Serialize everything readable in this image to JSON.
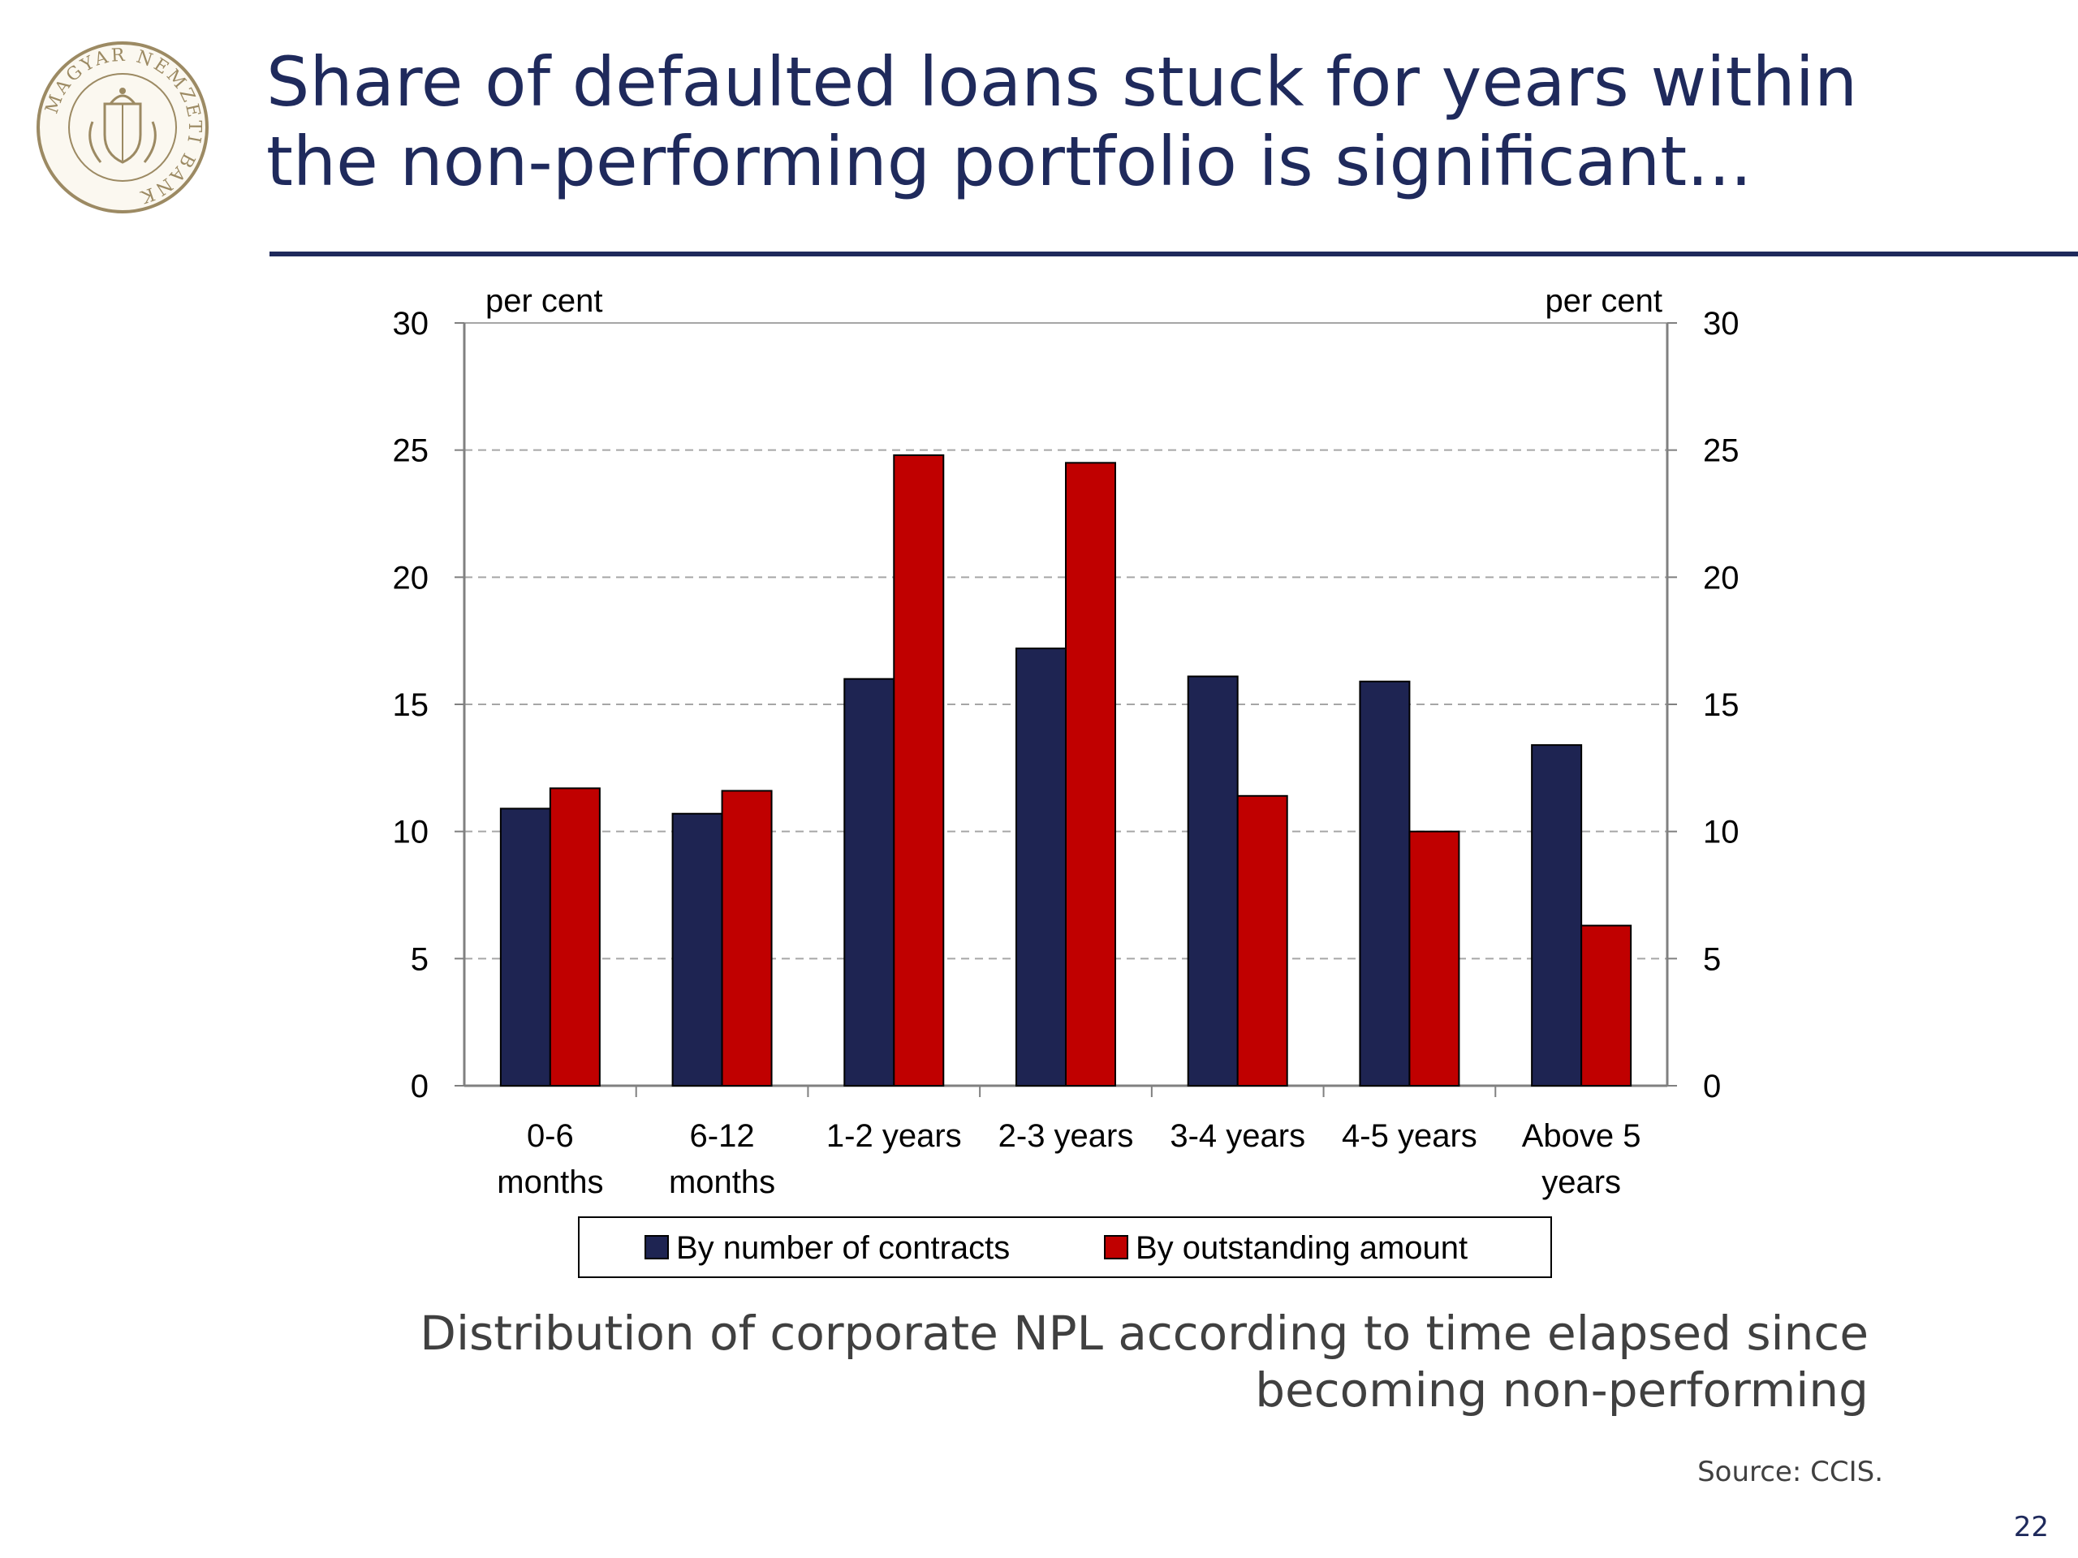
{
  "slide": {
    "title_line1": "Share of defaulted loans stuck for years within",
    "title_line2": "the non-performing portfolio is significant...",
    "logo_text": "MAGYAR NEMZETI BANK",
    "caption_line1": "Distribution of corporate NPL according to time elapsed since",
    "caption_line2": "becoming non-performing",
    "source": "Source: CCIS.",
    "page_number": "22"
  },
  "colors": {
    "navy": "#1f2a5c",
    "series_contracts": "#1e2452",
    "series_amount": "#c00000",
    "logo": "#9c8a63"
  },
  "chart_data": {
    "type": "bar",
    "title": "",
    "ylabel_left": "per cent",
    "ylabel_right": "per cent",
    "ylim": [
      0,
      30
    ],
    "yticks": [
      0,
      5,
      10,
      15,
      20,
      25,
      30
    ],
    "grid": "horizontal dashed",
    "legend_position": "bottom",
    "categories": [
      [
        "0-6",
        "months"
      ],
      [
        "6-12",
        "months"
      ],
      [
        "1-2 years"
      ],
      [
        "2-3 years"
      ],
      [
        "3-4 years"
      ],
      [
        "4-5 years"
      ],
      [
        "Above 5",
        "years"
      ]
    ],
    "series": [
      {
        "name": "By number of contracts",
        "color": "#1e2452",
        "values": [
          10.9,
          10.7,
          16.0,
          17.2,
          16.1,
          15.9,
          13.4
        ]
      },
      {
        "name": "By outstanding amount",
        "color": "#c00000",
        "values": [
          11.7,
          11.6,
          24.8,
          24.5,
          11.4,
          10.0,
          6.3
        ]
      }
    ]
  }
}
